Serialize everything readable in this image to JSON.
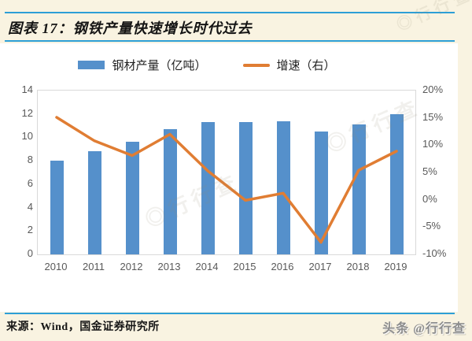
{
  "page": {
    "title": "图表 17：钢铁产量快速增长时代过去",
    "source": "来源：Wind，国金证券研究所",
    "brand": "头条 @行行查",
    "watermark": "◎行行查",
    "accent_rule_color": "#2d9fd6",
    "background_color": "#f9f3e1"
  },
  "chart_data": {
    "type": "bar+line combo",
    "categories": [
      "2010",
      "2011",
      "2012",
      "2013",
      "2014",
      "2015",
      "2016",
      "2017",
      "2018",
      "2019"
    ],
    "series": [
      {
        "name": "钢材产量（亿吨）",
        "type": "bar",
        "axis": "left",
        "color": "#5590cb",
        "values": [
          8.0,
          8.8,
          9.6,
          10.7,
          11.3,
          11.3,
          11.4,
          10.5,
          11.1,
          12.0
        ]
      },
      {
        "name": "增速（右）",
        "type": "line",
        "axis": "right",
        "color": "#e07d33",
        "values": [
          15.1,
          10.8,
          8.1,
          12.0,
          5.3,
          -0.1,
          1.2,
          -7.8,
          5.4,
          8.9
        ]
      }
    ],
    "left_axis": {
      "min": 0,
      "max": 14,
      "step": 2,
      "values": [
        0,
        2,
        4,
        6,
        8,
        10,
        12,
        14
      ],
      "labels": [
        "0",
        "2",
        "4",
        "6",
        "8",
        "10",
        "12",
        "14"
      ]
    },
    "right_axis": {
      "min": -10,
      "max": 20,
      "step": 5,
      "values": [
        -10,
        -5,
        0,
        5,
        10,
        15,
        20
      ],
      "labels": [
        "-10%",
        "-5%",
        "0%",
        "5%",
        "10%",
        "15%",
        "20%"
      ]
    },
    "legend_position": "top",
    "grid": false
  }
}
